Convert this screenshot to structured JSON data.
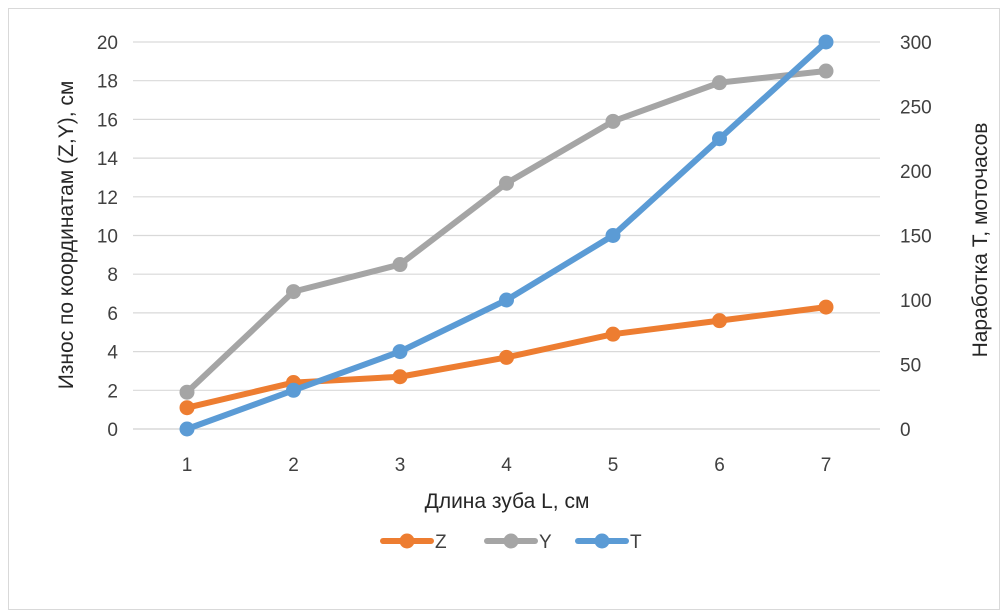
{
  "chart_data": {
    "type": "line",
    "title": "",
    "xlabel": "Длина зуба L, см",
    "ylabel_left": "Износ по координатам (Z,Y), см",
    "ylabel_right": "Наработка T, моточасов",
    "x": [
      1,
      2,
      3,
      4,
      5,
      6,
      7
    ],
    "x_tick_labels": [
      "1",
      "2",
      "3",
      "4",
      "5",
      "6",
      "7"
    ],
    "ylim_left": [
      0,
      20
    ],
    "yticks_left": [
      "0",
      "2",
      "4",
      "6",
      "8",
      "10",
      "12",
      "14",
      "16",
      "18",
      "20"
    ],
    "ylim_right": [
      0,
      300
    ],
    "yticks_right": [
      "0",
      "50",
      "100",
      "150",
      "200",
      "250",
      "300"
    ],
    "grid": true,
    "legend_position": "bottom",
    "series": [
      {
        "name": "Z",
        "axis": "left",
        "color": "#ed7d31",
        "values": [
          1.1,
          2.4,
          2.7,
          3.7,
          4.9,
          5.6,
          6.3
        ]
      },
      {
        "name": "Y",
        "axis": "left",
        "color": "#a5a5a5",
        "values": [
          1.9,
          7.1,
          8.5,
          12.7,
          15.9,
          17.9,
          18.5
        ]
      },
      {
        "name": "T",
        "axis": "right",
        "color": "#5b9bd5",
        "values": [
          0,
          30,
          60,
          100,
          150,
          225,
          300
        ]
      }
    ]
  }
}
